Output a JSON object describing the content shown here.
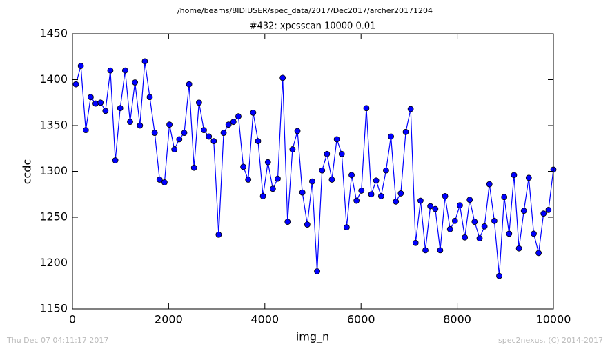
{
  "chart_data": {
    "type": "line",
    "header": "/home/beams/8IDIUSER/spec_data/2017/Dec2017/archer20171204",
    "title": "#432: xpcsscan 10000 0.01",
    "xlabel": "img_n",
    "ylabel": "ccdc",
    "footer_left": "Thu Dec 07 04:11:17 2017",
    "footer_right": "spec2nexus, (C) 2014-2017",
    "xlim": [
      0,
      10000
    ],
    "xticks": [
      0,
      2000,
      4000,
      6000,
      8000,
      10000
    ],
    "ylim": [
      1150,
      1450
    ],
    "yticks": [
      1150,
      1200,
      1250,
      1300,
      1350,
      1400,
      1450
    ],
    "x": [
      72,
      174,
      277,
      379,
      481,
      584,
      686,
      788,
      891,
      993,
      1096,
      1198,
      1300,
      1403,
      1505,
      1607,
      1710,
      1812,
      1914,
      2017,
      2119,
      2221,
      2324,
      2426,
      2528,
      2631,
      2733,
      2836,
      2938,
      3040,
      3143,
      3245,
      3347,
      3450,
      3552,
      3654,
      3757,
      3859,
      3961,
      4064,
      4166,
      4268,
      4371,
      4473,
      4575,
      4678,
      4780,
      4883,
      4985,
      5087,
      5190,
      5292,
      5394,
      5497,
      5599,
      5701,
      5804,
      5906,
      6008,
      6111,
      6213,
      6315,
      6418,
      6520,
      6622,
      6725,
      6827,
      6930,
      7032,
      7134,
      7237,
      7339,
      7441,
      7544,
      7646,
      7748,
      7851,
      7953,
      8055,
      8158,
      8260,
      8362,
      8465,
      8567,
      8669,
      8772,
      8874,
      8977,
      9079,
      9181,
      9284,
      9386,
      9488,
      9591,
      9693,
      9795,
      9898,
      10000
    ],
    "series": [
      {
        "color": "#0000ff",
        "marker_edge": "#000000",
        "values": [
          1395,
          1415,
          1345,
          1381,
          1374,
          1375,
          1366,
          1410,
          1312,
          1369,
          1410,
          1354,
          1397,
          1350,
          1420,
          1381,
          1342,
          1291,
          1288,
          1351,
          1324,
          1335,
          1342,
          1395,
          1304,
          1375,
          1345,
          1338,
          1333,
          1231,
          1342,
          1351,
          1354,
          1360,
          1305,
          1291,
          1364,
          1333,
          1273,
          1310,
          1281,
          1292,
          1402,
          1245,
          1324,
          1344,
          1277,
          1242,
          1289,
          1191,
          1301,
          1319,
          1291,
          1335,
          1319,
          1239,
          1296,
          1268,
          1279,
          1369,
          1275,
          1290,
          1273,
          1301,
          1338,
          1267,
          1276,
          1343,
          1368,
          1222,
          1268,
          1214,
          1262,
          1259,
          1214,
          1273,
          1237,
          1246,
          1263,
          1228,
          1269,
          1245,
          1227,
          1240,
          1286,
          1246,
          1186,
          1272,
          1232,
          1296,
          1216,
          1257,
          1293,
          1232,
          1211,
          1254,
          1258,
          1302
        ]
      }
    ]
  }
}
